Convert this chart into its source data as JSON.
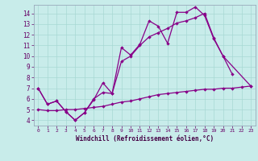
{
  "xlabel": "Windchill (Refroidissement éolien,°C)",
  "bg_color": "#c8ecea",
  "grid_color": "#a8d8d4",
  "line_color": "#880088",
  "xlim_min": -0.5,
  "xlim_max": 23.5,
  "ylim_min": 3.5,
  "ylim_max": 14.8,
  "xticks": [
    0,
    1,
    2,
    3,
    4,
    5,
    6,
    7,
    8,
    9,
    10,
    11,
    12,
    13,
    14,
    15,
    16,
    17,
    18,
    19,
    20,
    21,
    22,
    23
  ],
  "yticks": [
    4,
    5,
    6,
    7,
    8,
    9,
    10,
    11,
    12,
    13,
    14
  ],
  "s1_x": [
    0,
    1,
    2,
    3,
    4,
    5,
    6,
    7,
    8,
    9,
    10,
    11,
    12,
    13,
    14,
    15,
    16,
    17,
    18,
    19,
    20,
    21
  ],
  "s1_y": [
    7.0,
    5.5,
    5.8,
    4.8,
    4.0,
    4.7,
    5.9,
    7.5,
    6.5,
    10.8,
    10.1,
    11.1,
    13.3,
    12.8,
    11.2,
    14.1,
    14.1,
    14.6,
    13.8,
    11.6,
    10.0,
    8.3
  ],
  "s2_x": [
    0,
    1,
    2,
    3,
    4,
    5,
    6,
    7,
    8,
    9,
    10,
    11,
    12,
    13,
    14,
    15,
    16,
    17,
    18,
    19,
    20,
    23
  ],
  "s2_y": [
    7.0,
    5.5,
    5.8,
    4.8,
    4.0,
    4.7,
    6.0,
    6.6,
    6.5,
    9.5,
    10.0,
    11.0,
    11.8,
    12.2,
    12.6,
    13.1,
    13.3,
    13.6,
    14.0,
    11.7,
    10.0,
    7.2
  ],
  "s3_x": [
    0,
    1,
    2,
    3,
    4,
    5,
    6,
    7,
    8,
    9,
    10,
    11,
    12,
    13,
    14,
    15,
    16,
    17,
    18,
    19,
    20,
    21,
    22,
    23
  ],
  "s3_y": [
    5.0,
    4.9,
    4.9,
    5.0,
    5.0,
    5.1,
    5.2,
    5.3,
    5.5,
    5.7,
    5.8,
    6.0,
    6.2,
    6.4,
    6.5,
    6.6,
    6.7,
    6.8,
    6.9,
    6.9,
    7.0,
    7.0,
    7.1,
    7.2
  ]
}
